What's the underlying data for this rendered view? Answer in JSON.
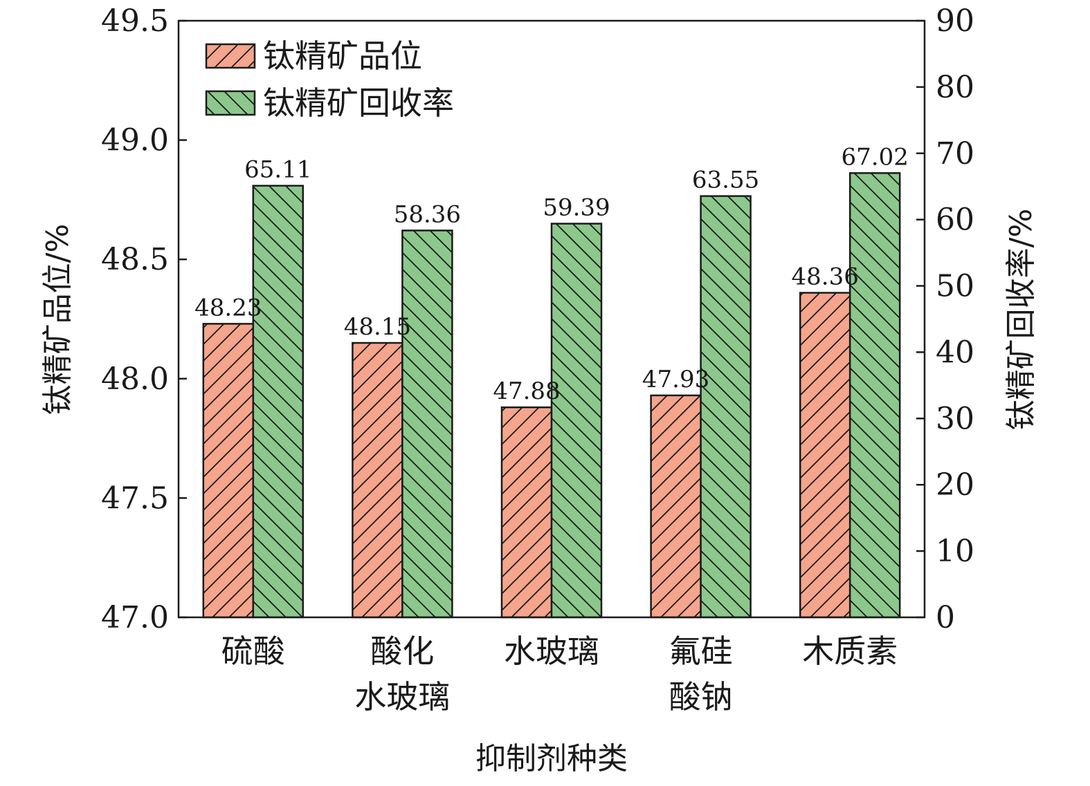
{
  "chart_data": {
    "type": "bar",
    "categories": [
      [
        "硫酸"
      ],
      [
        "酸化",
        "水玻璃"
      ],
      [
        "水玻璃"
      ],
      [
        "氟硅",
        "酸钠"
      ],
      [
        "木质素"
      ]
    ],
    "series": [
      {
        "name": "钛精矿品位",
        "axis": "left",
        "values": [
          48.23,
          48.15,
          47.88,
          47.93,
          48.36
        ],
        "labels": [
          "48.23",
          "48.15",
          "47.88",
          "47.93",
          "48.36"
        ],
        "color": "#f4a58c",
        "hatch_color": "#1a1a1a"
      },
      {
        "name": "钛精矿回收率",
        "axis": "right",
        "values": [
          65.11,
          58.36,
          59.39,
          63.55,
          67.02
        ],
        "labels": [
          "65.11",
          "58.36",
          "59.39",
          "63.55",
          "67.02"
        ],
        "color": "#8cc88c",
        "hatch_color": "#1a1a1a"
      }
    ],
    "xlabel": "抑制剂种类",
    "ylabel_left": "钛精矿品位/%",
    "ylabel_right": "钛精矿回收率/%",
    "ylim_left": [
      47.0,
      49.5
    ],
    "yticks_left": [
      "47.0",
      "47.5",
      "48.0",
      "48.5",
      "49.0",
      "49.5"
    ],
    "ylim_right": [
      0,
      90
    ],
    "yticks_right": [
      "0",
      "10",
      "20",
      "30",
      "40",
      "50",
      "60",
      "70",
      "80",
      "90"
    ],
    "legend_position": "top-left",
    "grid": false
  }
}
